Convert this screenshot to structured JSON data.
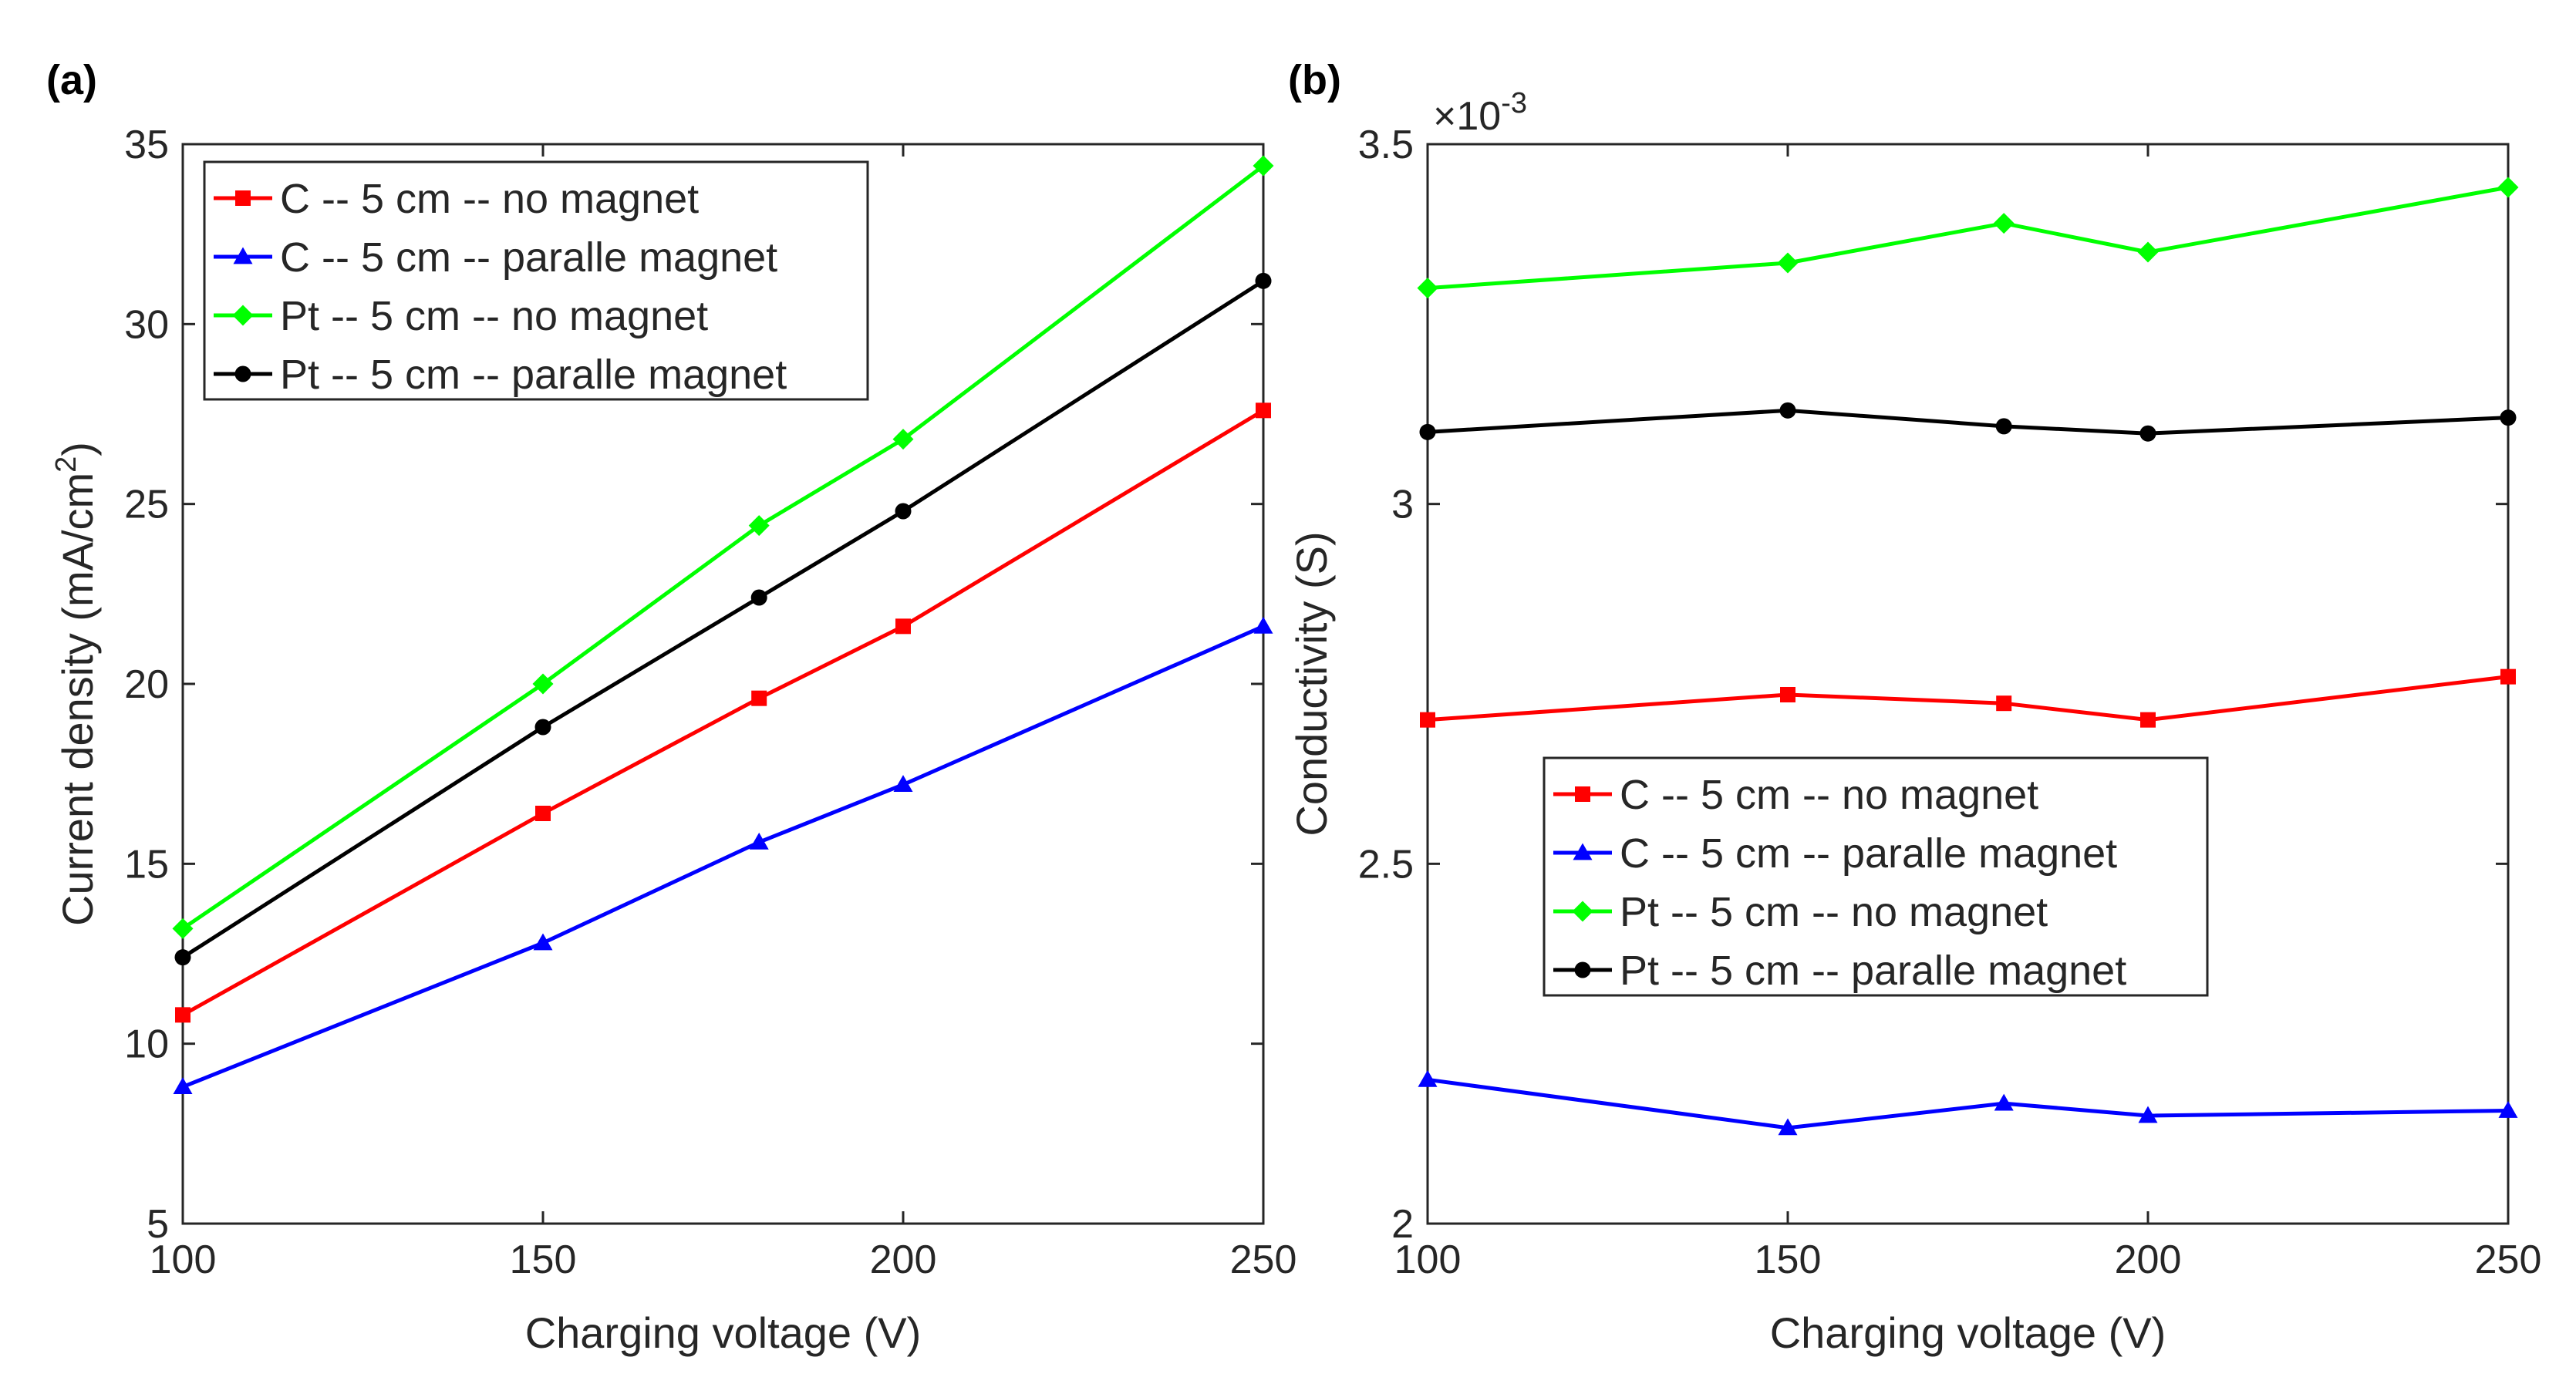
{
  "chart_data": [
    {
      "type": "line",
      "panel_label": "(a)",
      "title": "",
      "xlabel": "Charging voltage (V)",
      "ylabel_main": "Current density (mA/cm",
      "ylabel_sup": "2",
      "ylabel_end": ")",
      "xlim": [
        100,
        250
      ],
      "ylim": [
        5,
        35
      ],
      "xticks": [
        100,
        150,
        200,
        250
      ],
      "yticks": [
        5,
        10,
        15,
        20,
        25,
        30,
        35
      ],
      "xtick_labels": [
        "100",
        "150",
        "200",
        "250"
      ],
      "ytick_labels": [
        "5",
        "10",
        "15",
        "20",
        "25",
        "30",
        "35"
      ],
      "exponent_label": "",
      "legend_location": "top-left",
      "x": [
        100,
        150,
        180,
        200,
        250
      ],
      "series": [
        {
          "name": "C -- 5 cm -- no magnet",
          "color": "#ff0000",
          "marker": "square",
          "values": [
            10.8,
            16.4,
            19.6,
            21.6,
            27.6
          ]
        },
        {
          "name": "C -- 5 cm -- paralle magnet",
          "color": "#0000ff",
          "marker": "triangle",
          "values": [
            8.8,
            12.8,
            15.6,
            17.2,
            21.6
          ]
        },
        {
          "name": "Pt -- 5 cm -- no magnet",
          "color": "#00ff00",
          "marker": "diamond",
          "values": [
            13.2,
            20.0,
            24.4,
            26.8,
            34.4
          ]
        },
        {
          "name": "Pt -- 5 cm -- paralle magnet",
          "color": "#000000",
          "marker": "circle",
          "values": [
            12.4,
            18.8,
            22.4,
            24.8,
            31.2
          ]
        }
      ]
    },
    {
      "type": "line",
      "panel_label": "(b)",
      "title": "",
      "xlabel": "Charging voltage (V)",
      "ylabel_main": "Conductivity (S)",
      "ylabel_sup": "",
      "ylabel_end": "",
      "xlim": [
        100,
        250
      ],
      "ylim": [
        2.0,
        3.5
      ],
      "xticks": [
        100,
        150,
        200,
        250
      ],
      "yticks": [
        2.0,
        2.5,
        3.0,
        3.5
      ],
      "xtick_labels": [
        "100",
        "150",
        "200",
        "250"
      ],
      "ytick_labels": [
        "2",
        "2.5",
        "3",
        "3.5"
      ],
      "exponent_label": "×10",
      "exponent_sup": "-3",
      "legend_location": "center-left",
      "x": [
        100,
        150,
        180,
        200,
        250
      ],
      "series": [
        {
          "name": "C -- 5 cm -- no magnet",
          "color": "#ff0000",
          "marker": "square",
          "values": [
            2.7,
            2.735,
            2.723,
            2.7,
            2.76
          ]
        },
        {
          "name": "C -- 5 cm -- paralle magnet",
          "color": "#0000ff",
          "marker": "triangle",
          "values": [
            2.2,
            2.133,
            2.167,
            2.15,
            2.157
          ]
        },
        {
          "name": "Pt -- 5 cm -- no magnet",
          "color": "#00ff00",
          "marker": "diamond",
          "values": [
            3.3,
            3.335,
            3.39,
            3.35,
            3.44
          ]
        },
        {
          "name": "Pt -- 5 cm -- paralle magnet",
          "color": "#000000",
          "marker": "circle",
          "values": [
            3.1,
            3.13,
            3.108,
            3.098,
            3.12
          ]
        }
      ]
    }
  ]
}
